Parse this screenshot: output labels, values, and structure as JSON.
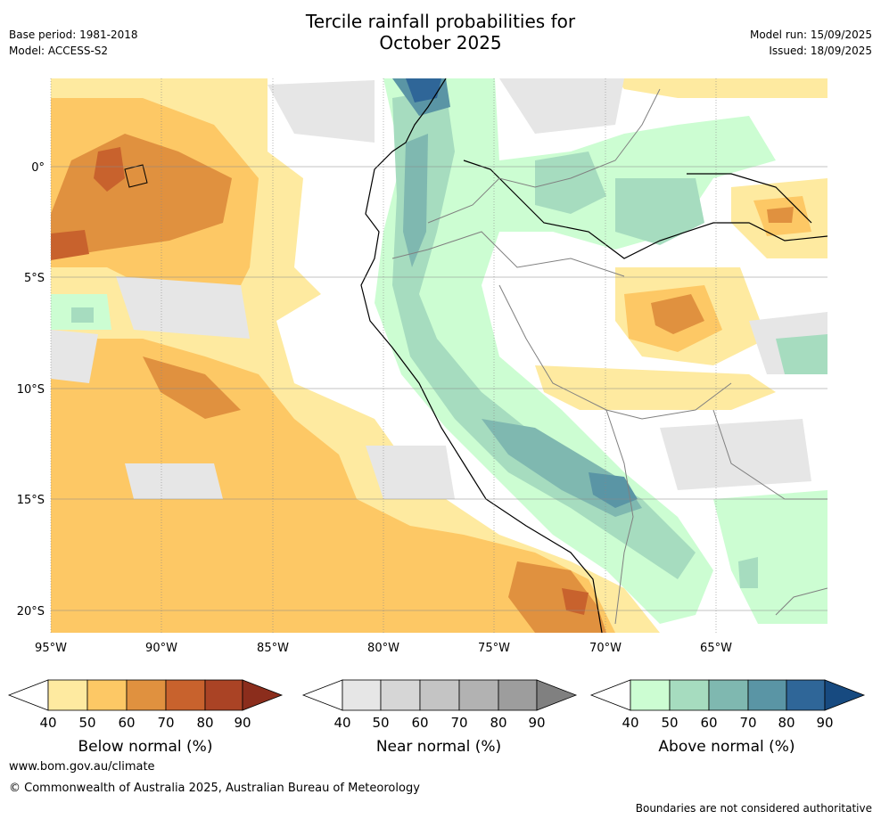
{
  "title_line1": "Tercile rainfall probabilities for",
  "title_line2": "October 2025",
  "base_period": "Base period: 1981-2018",
  "model": "Model: ACCESS-S2",
  "model_run": "Model run: 15/09/2025",
  "issued": "Issued: 18/09/2025",
  "map": {
    "lon_labels": [
      "95°W",
      "90°W",
      "85°W",
      "80°W",
      "75°W",
      "70°W",
      "65°W"
    ],
    "lat_labels": [
      "0°",
      "5°S",
      "10°S",
      "15°S",
      "20°S"
    ]
  },
  "legends": [
    {
      "title": "Below normal (%)",
      "ticks": [
        "40",
        "50",
        "60",
        "70",
        "80",
        "90"
      ],
      "colors": [
        "#ffffff",
        "#feeaa0",
        "#fdc865",
        "#e0913f",
        "#c8622d",
        "#aa4325",
        "#8b2d1c"
      ]
    },
    {
      "title": "Near normal (%)",
      "ticks": [
        "40",
        "50",
        "60",
        "70",
        "80",
        "90"
      ],
      "colors": [
        "#ffffff",
        "#e6e6e6",
        "#d6d6d6",
        "#c4c4c4",
        "#b2b2b2",
        "#9d9d9d",
        "#808080"
      ]
    },
    {
      "title": "Above normal (%)",
      "ticks": [
        "40",
        "50",
        "60",
        "70",
        "80",
        "90"
      ],
      "colors": [
        "#ffffff",
        "#ccfdd2",
        "#a6dcbf",
        "#7fb8b0",
        "#5a95a5",
        "#2f6698",
        "#174a80"
      ]
    }
  ],
  "footer_url": "www.bom.gov.au/climate",
  "copyright": "© Commonwealth of Australia 2025, Australian Bureau of Meteorology",
  "disclaimer": "Boundaries are not considered authoritative"
}
